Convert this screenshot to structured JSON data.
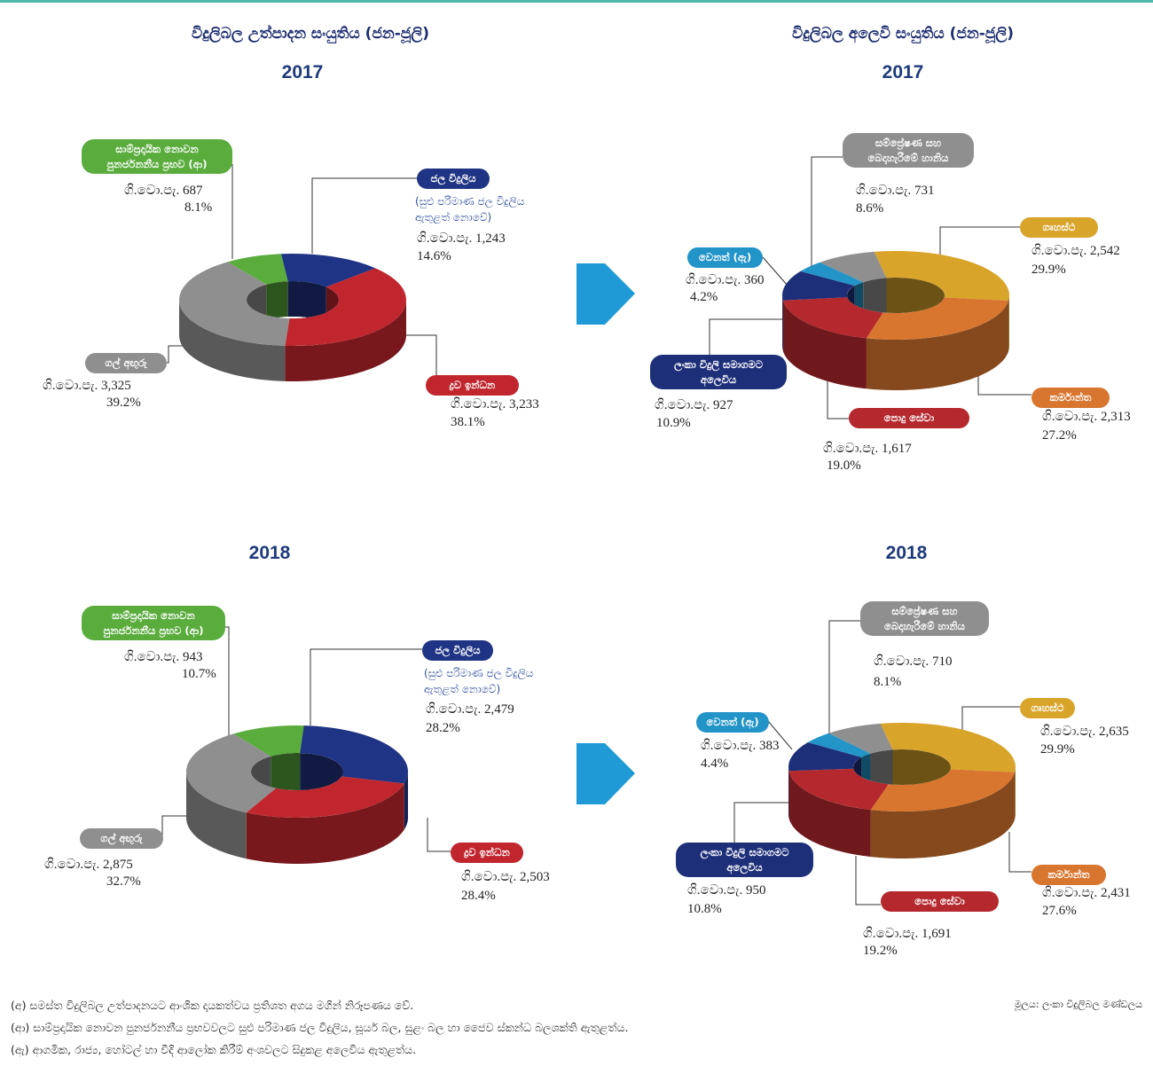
{
  "headings": [
    "විදුලිබල උත්පාදන සංයුතිය (ජන-ජූලි)",
    "විදුලිබල අලෙවි සංයුතිය (ජන-ජූලි)"
  ],
  "chart_data": [
    {
      "type": "donut",
      "title": "2017",
      "categories": [
        "සාම්ප්‍රදායික නොවන පුනර්ජනනීය ප්‍රභව (ආ)",
        "ජල විදුලිය",
        "ද්‍රව ඉන්ධන",
        "ගල් අඟුරු"
      ],
      "note": "(සුළු පරිමාණ ජල විදුලිය ඇතුළත් නොවේ)",
      "colors": [
        "#5aac3d",
        "#1f3484",
        "#c1262e",
        "#8f8f8f"
      ],
      "values": [
        8.1,
        14.6,
        38.1,
        39.2
      ],
      "value_labels": [
        "8.1%",
        "14.6%",
        "38.1%",
        "39.2%"
      ],
      "gwh": [
        687,
        1243,
        3233,
        3325
      ],
      "gwh_labels": [
        "ගි.වො.පැ. 687",
        "ගි.වො.පැ. 1,243",
        "ගි.වො.පැ. 3,233",
        "ගි.වො.පැ. 3,325"
      ]
    },
    {
      "type": "donut",
      "title": "2017",
      "categories": [
        "ගෘහස්ථ",
        "කර්මාන්ත",
        "පොදු සේවා",
        "ලංකා විදුලි සමාගමට අලෙවිය",
        "වෙනත් (ඇ)",
        "සම්ප්‍රේෂණ සහ බෙදාහැරීමේ හානිය"
      ],
      "colors": [
        "#d9a42a",
        "#d8762f",
        "#b5282d",
        "#1e2f7a",
        "#2294c8",
        "#8f8f8f"
      ],
      "values": [
        29.9,
        27.2,
        19.0,
        10.9,
        4.2,
        8.6
      ],
      "value_labels": [
        "29.9%",
        "27.2%",
        "19.0%",
        "10.9%",
        "4.2%",
        "8.6%"
      ],
      "gwh": [
        2542,
        2313,
        1617,
        927,
        360,
        731
      ],
      "gwh_labels": [
        "ගි.වො.පැ. 2,542",
        "ගි.වො.පැ. 2,313",
        "ගි.වො.පැ. 1,617",
        "ගි.වො.පැ. 927",
        "ගි.වො.පැ. 360",
        "ගි.වො.පැ. 731"
      ]
    },
    {
      "type": "donut",
      "title": "2018",
      "categories": [
        "සාම්ප්‍රදායික නොවන පුනර්ජනනීය ප්‍රභව (ආ)",
        "ජල විදුලිය",
        "ද්‍රව ඉන්ධන",
        "ගල් අඟුරු"
      ],
      "note": "(සුළු පරිමාණ ජල විදුලිය ඇතුළත් නොවේ)",
      "colors": [
        "#5aac3d",
        "#1f3484",
        "#c1262e",
        "#8f8f8f"
      ],
      "values": [
        10.7,
        28.2,
        28.4,
        32.7
      ],
      "value_labels": [
        "10.7%",
        "28.2%",
        "28.4%",
        "32.7%"
      ],
      "gwh": [
        943,
        2479,
        2503,
        2875
      ],
      "gwh_labels": [
        "ගි.වො.පැ. 943",
        "ගි.වො.පැ. 2,479",
        "ගි.වො.පැ. 2,503",
        "ගි.වො.පැ. 2,875"
      ]
    },
    {
      "type": "donut",
      "title": "2018",
      "categories": [
        "ගෘහස්ථ",
        "කර්මාන්ත",
        "පොදු සේවා",
        "ලංකා විදුලි සමාගමට අලෙවිය",
        "වෙනත් (ඇ)",
        "සම්ප්‍රේෂණ සහ බෙදාහැරීමේ හානිය"
      ],
      "colors": [
        "#d9a42a",
        "#d8762f",
        "#b5282d",
        "#1e2f7a",
        "#2294c8",
        "#8f8f8f"
      ],
      "values": [
        29.9,
        27.6,
        19.2,
        10.8,
        4.4,
        8.1
      ],
      "value_labels": [
        "29.9%",
        "27.6%",
        "19.2%",
        "10.8%",
        "4.4%",
        "8.1%"
      ],
      "gwh": [
        2635,
        2431,
        1691,
        950,
        383,
        710
      ],
      "gwh_labels": [
        "ගි.වො.පැ. 2,635",
        "ගි.වො.පැ. 2,431",
        "ගි.වො.පැ. 1,691",
        "ගි.වො.පැ. 950",
        "ගි.වො.පැ. 383",
        "ගි.වො.පැ. 710"
      ]
    }
  ],
  "footnotes": [
    "(අ)  සමස්ත විදුලිබල උත්පාදනයට ආංශික දායකත්වය ප්‍රතිශත අගය මගින් නිරූපණය වේ.",
    "(ආ) සාම්ප්‍රදායික නොවන පුනර්ජනනීය ප්‍රභවවලට සුළු පරිමාණ ජල විදුලිය, සූර්ය බල, සුළං බල හා ජෛව ස්කන්ධ බලශක්ති ඇතුළත්ය.",
    "(ඇ) ආගමික, රාජ්‍ය, හෝටල් හා වීදි ආලෝක කිරීම් අංශවලට සිදුකළ අලෙවිය ඇතුළත්ය."
  ],
  "source": "මූලය: ලංකා විදුලිබල මණ්ඩලය"
}
